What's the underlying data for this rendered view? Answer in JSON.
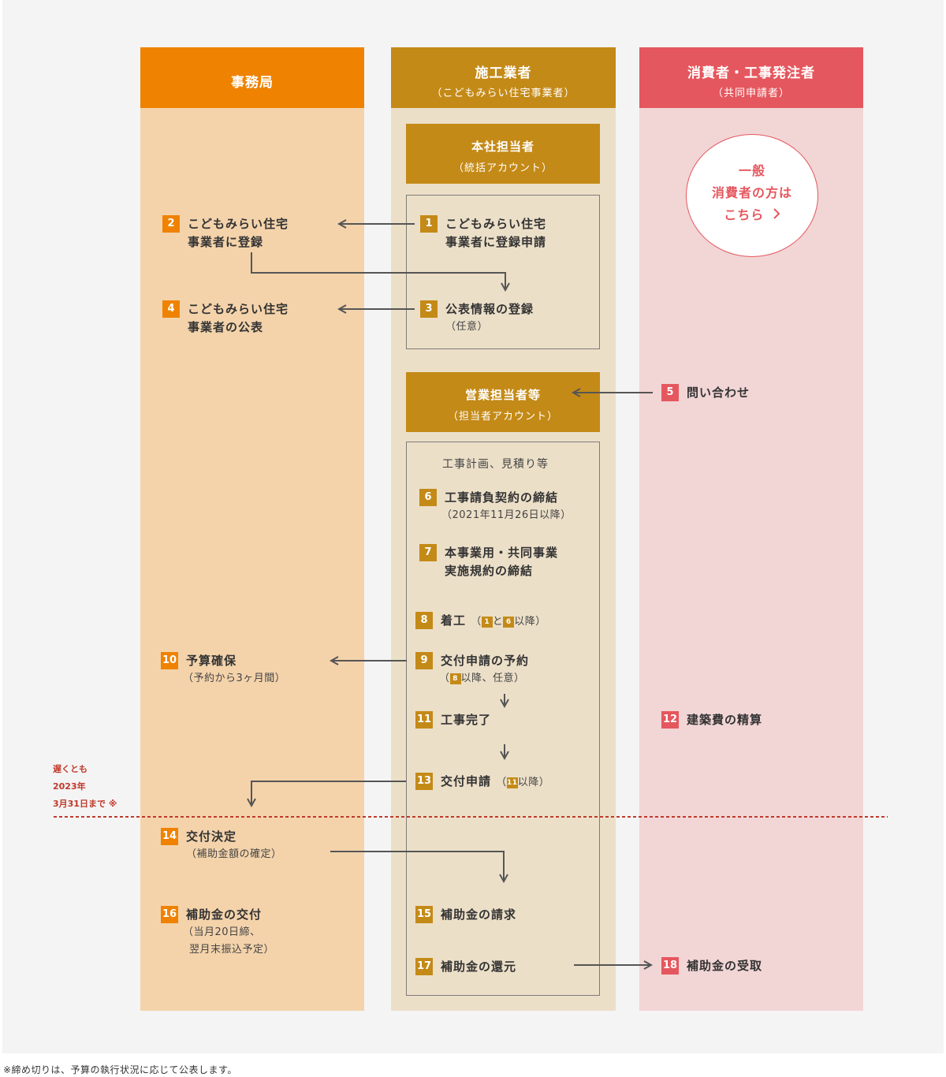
{
  "lanes": {
    "office": {
      "title": "事務局",
      "color": "#ef8200",
      "bg": "#f4d3ab"
    },
    "builder": {
      "title": "施工業者",
      "subtitle": "（こどもみらい住宅事業者）",
      "color": "#c48a17",
      "bg": "#ecdfc8"
    },
    "consumer": {
      "title": "消費者・工事発注者",
      "subtitle": "（共同申請者）",
      "color": "#e5575e",
      "bg": "#f2d5d5"
    }
  },
  "builder_sections": {
    "hq": {
      "title": "本社担当者",
      "subtitle": "（統括アカウント）"
    },
    "sales": {
      "title": "営業担当者等",
      "subtitle": "（担当者アカウント）"
    },
    "planning_note": "工事計画、見積り等"
  },
  "consumer_link": {
    "line1": "一般",
    "line2": "消費者の方は",
    "line3": "こちら",
    "icon": "chevron-right-icon"
  },
  "steps": {
    "s1": {
      "num": "1",
      "line1": "こどもみらい住宅",
      "line2": "事業者に登録申請"
    },
    "s2": {
      "num": "2",
      "line1": "こどもみらい住宅",
      "line2": "事業者に登録"
    },
    "s3": {
      "num": "3",
      "line1": "公表情報の登録",
      "sub": "（任意）"
    },
    "s4": {
      "num": "4",
      "line1": "こどもみらい住宅",
      "line2": "事業者の公表"
    },
    "s5": {
      "num": "5",
      "line1": "問い合わせ"
    },
    "s6": {
      "num": "6",
      "line1": "工事請負契約の締結",
      "sub": "（2021年11月26日以降）"
    },
    "s7": {
      "num": "7",
      "line1": "本事業用・共同事業",
      "line2": "実施規約の締結"
    },
    "s8": {
      "num": "8",
      "line1": "着工",
      "paren_open": "（",
      "ref1": "1",
      "mid": "と",
      "ref2": "6",
      "after": "以降）"
    },
    "s9": {
      "num": "9",
      "line1": "交付申請の予約",
      "paren_open": "（",
      "ref": "8",
      "after": "以降、任意）"
    },
    "s10": {
      "num": "10",
      "line1": "予算確保",
      "sub": "（予約から3ヶ月間）"
    },
    "s11": {
      "num": "11",
      "line1": "工事完了"
    },
    "s12": {
      "num": "12",
      "line1": "建築費の精算"
    },
    "s13": {
      "num": "13",
      "line1": "交付申請",
      "paren_open": "（",
      "ref": "11",
      "after": "以降）"
    },
    "s14": {
      "num": "14",
      "line1": "交付決定",
      "sub": "（補助金額の確定）"
    },
    "s15": {
      "num": "15",
      "line1": "補助金の請求"
    },
    "s16": {
      "num": "16",
      "line1": "補助金の交付",
      "sub1": "（当月20日締、",
      "sub2": "翌月末振込予定）"
    },
    "s17": {
      "num": "17",
      "line1": "補助金の還元"
    },
    "s18": {
      "num": "18",
      "line1": "補助金の受取"
    }
  },
  "deadline": {
    "line1": "遅くとも",
    "line2": "2023年",
    "line3": "3月31日まで ※",
    "color": "#c0392b"
  },
  "footnote": "※締め切りは、予算の執行状況に応じて公表します。"
}
